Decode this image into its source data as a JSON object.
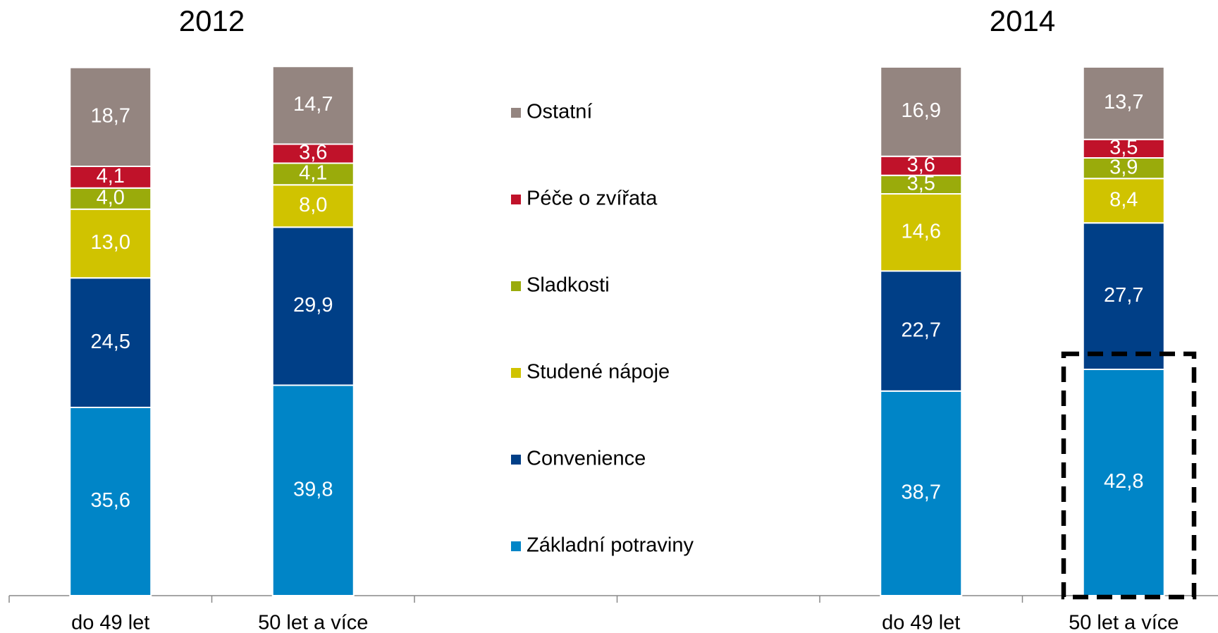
{
  "chart_data": {
    "type": "stacked_bar",
    "group_labels": [
      "2012",
      "2014"
    ],
    "categories": [
      "do 49 let",
      "50 let a více",
      null,
      null,
      "do 49 let",
      "50 let a více"
    ],
    "ylim": [
      0,
      100
    ],
    "series": [
      {
        "name": "Základní potraviny",
        "color": "#0085c7",
        "values": [
          35.6,
          39.8,
          null,
          null,
          38.7,
          42.8
        ],
        "value_labels": [
          "35,6",
          "39,8",
          null,
          null,
          "38,7",
          "42,8"
        ]
      },
      {
        "name": "Convenience",
        "color": "#003f87",
        "values": [
          24.5,
          29.9,
          null,
          null,
          22.7,
          27.7
        ],
        "value_labels": [
          "24,5",
          "29,9",
          null,
          null,
          "22,7",
          "27,7"
        ]
      },
      {
        "name": "Studené nápoje",
        "color": "#d0c300",
        "values": [
          13.0,
          8.0,
          null,
          null,
          14.6,
          8.4
        ],
        "value_labels": [
          "13,0",
          "8,0",
          null,
          null,
          "14,6",
          "8,4"
        ]
      },
      {
        "name": "Sladkosti",
        "color": "#9aab0b",
        "values": [
          4.0,
          4.1,
          null,
          null,
          3.5,
          3.9
        ],
        "value_labels": [
          "4,0",
          "4,1",
          null,
          null,
          "3,5",
          "3,9"
        ]
      },
      {
        "name": "Péče o zvířata",
        "color": "#c0122a",
        "values": [
          4.1,
          3.6,
          null,
          null,
          3.6,
          3.5
        ],
        "value_labels": [
          "4,1",
          "3,6",
          null,
          null,
          "3,6",
          "3,5"
        ]
      },
      {
        "name": "Ostatní",
        "color": "#948580",
        "values": [
          18.7,
          14.7,
          null,
          null,
          16.9,
          13.7
        ],
        "value_labels": [
          "18,7",
          "14,7",
          null,
          null,
          "16,9",
          "13,7"
        ]
      }
    ]
  }
}
